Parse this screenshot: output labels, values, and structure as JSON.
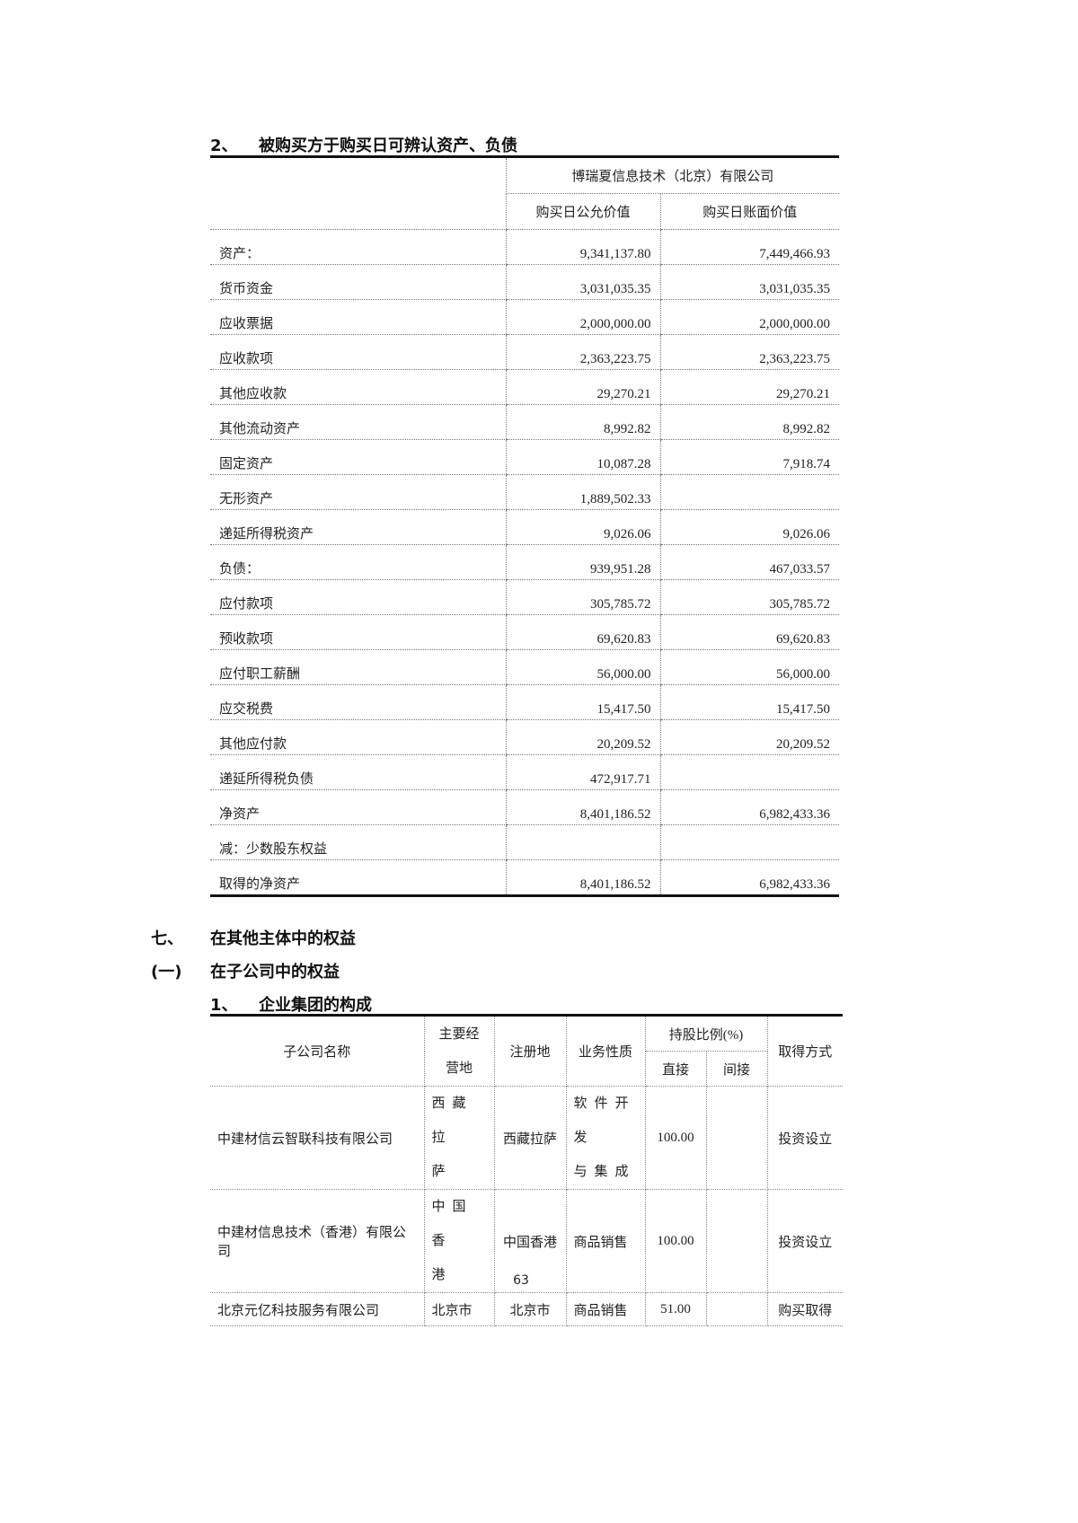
{
  "section2": {
    "number": "2、",
    "title": "被购买方于购买日可辨认资产、负债"
  },
  "table1": {
    "company": "博瑞夏信息技术（北京）有限公司",
    "col_fair": "购买日公允价值",
    "col_book": "购买日账面价值",
    "rows": [
      {
        "label": "资产：",
        "fair": "9,341,137.80",
        "book": "7,449,466.93"
      },
      {
        "label": "货币资金",
        "fair": "3,031,035.35",
        "book": "3,031,035.35"
      },
      {
        "label": "应收票据",
        "fair": "2,000,000.00",
        "book": "2,000,000.00"
      },
      {
        "label": "应收款项",
        "fair": "2,363,223.75",
        "book": "2,363,223.75"
      },
      {
        "label": "其他应收款",
        "fair": "29,270.21",
        "book": "29,270.21"
      },
      {
        "label": "其他流动资产",
        "fair": "8,992.82",
        "book": "8,992.82"
      },
      {
        "label": "固定资产",
        "fair": "10,087.28",
        "book": "7,918.74"
      },
      {
        "label": "无形资产",
        "fair": "1,889,502.33",
        "book": ""
      },
      {
        "label": "递延所得税资产",
        "fair": "9,026.06",
        "book": "9,026.06"
      },
      {
        "label": "负债：",
        "fair": "939,951.28",
        "book": "467,033.57"
      },
      {
        "label": "应付款项",
        "fair": "305,785.72",
        "book": "305,785.72"
      },
      {
        "label": "预收款项",
        "fair": "69,620.83",
        "book": "69,620.83"
      },
      {
        "label": "应付职工薪酬",
        "fair": "56,000.00",
        "book": "56,000.00"
      },
      {
        "label": "应交税费",
        "fair": "15,417.50",
        "book": "15,417.50"
      },
      {
        "label": "其他应付款",
        "fair": "20,209.52",
        "book": "20,209.52"
      },
      {
        "label": "递延所得税负债",
        "fair": "472,917.71",
        "book": ""
      },
      {
        "label": "净资产",
        "fair": "8,401,186.52",
        "book": "6,982,433.36"
      },
      {
        "label": "减：少数股东权益",
        "fair": "",
        "book": ""
      },
      {
        "label": "取得的净资产",
        "fair": "8,401,186.52",
        "book": "6,982,433.36"
      }
    ]
  },
  "section7": {
    "number": "七、",
    "title": "在其他主体中的权益"
  },
  "sub1": {
    "number": "(一)",
    "title": "在子公司中的权益"
  },
  "sub1_1": {
    "number": "1、",
    "title": "企业集团的构成"
  },
  "table2": {
    "headers": {
      "name": "子公司名称",
      "main_place_1": "主要经",
      "main_place_2": "营地",
      "registered": "注册地",
      "business": "业务性质",
      "holding": "持股比例(%)",
      "direct": "直接",
      "indirect": "间接",
      "method": "取得方式"
    },
    "rows": [
      {
        "name": "中建材信云智联科技有限公司",
        "main_place_1": "西藏拉",
        "main_place_2": "萨",
        "registered": "西藏拉萨",
        "business_1": "软件开发",
        "business_2": "与集成",
        "direct": "100.00",
        "indirect": "",
        "method": "投资设立"
      },
      {
        "name": "中建材信息技术（香港）有限公司",
        "main_place_1": "中国香",
        "main_place_2": "港",
        "registered": "中国香港",
        "business_1": "商品销售",
        "business_2": "",
        "direct": "100.00",
        "indirect": "",
        "method": "投资设立"
      },
      {
        "name": "北京元亿科技服务有限公司",
        "main_place_1": "北京市",
        "main_place_2": "",
        "registered": "北京市",
        "business_1": "商品销售",
        "business_2": "",
        "direct": "51.00",
        "indirect": "",
        "method": "购买取得"
      }
    ]
  },
  "page_number": "63"
}
